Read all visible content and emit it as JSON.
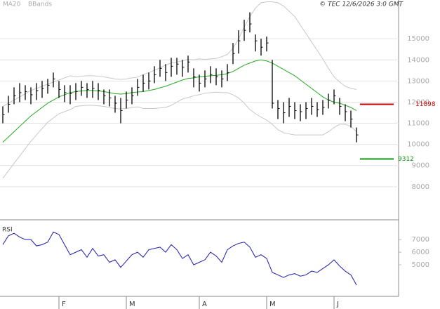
{
  "chart_data": [
    {
      "type": "ohlc",
      "credit": "© TEC 12/6/2026 3:0 GMT",
      "categories": [
        null,
        null,
        null,
        null,
        null,
        null,
        null,
        null,
        null,
        null,
        "F",
        null,
        null,
        null,
        null,
        null,
        null,
        null,
        null,
        null,
        null,
        null,
        "M",
        null,
        null,
        null,
        null,
        null,
        null,
        null,
        null,
        null,
        null,
        null,
        null,
        "A",
        null,
        null,
        null,
        null,
        null,
        null,
        null,
        null,
        null,
        null,
        null,
        "M",
        null,
        null,
        null,
        null,
        null,
        null,
        null,
        null,
        null,
        null,
        null,
        "J",
        null,
        null,
        null,
        null
      ],
      "high": [
        11800,
        12300,
        12700,
        12900,
        12800,
        12700,
        12900,
        13000,
        13100,
        13400,
        13000,
        12800,
        12800,
        12900,
        13000,
        12900,
        13000,
        12900,
        12600,
        12600,
        12300,
        12200,
        12500,
        12700,
        13100,
        13300,
        13400,
        13700,
        14000,
        13800,
        14100,
        14100,
        14000,
        14200,
        13600,
        13300,
        13500,
        13700,
        13600,
        13500,
        13800,
        14800,
        15400,
        15900,
        16250,
        15200,
        15000,
        15100,
        14000,
        12100,
        12000,
        12200,
        12000,
        11900,
        12000,
        12200,
        12000,
        12100,
        12400,
        12600,
        12200,
        11900,
        11600,
        10800
      ],
      "low": [
        11000,
        11500,
        11900,
        12000,
        12100,
        11900,
        12100,
        12200,
        12400,
        12700,
        12200,
        12000,
        11900,
        12100,
        12300,
        12200,
        12200,
        12100,
        11900,
        11800,
        11500,
        11000,
        11700,
        11900,
        12300,
        12500,
        12600,
        12900,
        13200,
        13000,
        13200,
        13300,
        13200,
        13400,
        12700,
        12500,
        12700,
        12900,
        12800,
        12700,
        13000,
        13800,
        14300,
        14900,
        15300,
        14400,
        14200,
        14400,
        11700,
        11200,
        11000,
        11300,
        11200,
        11100,
        11200,
        11400,
        11300,
        11400,
        11700,
        11900,
        11400,
        11100,
        10800,
        10100
      ],
      "close": [
        11400,
        11900,
        12300,
        12450,
        12500,
        12350,
        12550,
        12650,
        12800,
        13100,
        12600,
        12450,
        12400,
        12500,
        12700,
        12600,
        12650,
        12550,
        12300,
        12200,
        11950,
        11600,
        12100,
        12300,
        12700,
        12900,
        13000,
        13300,
        13600,
        13400,
        13700,
        13800,
        13650,
        13900,
        13200,
        12900,
        13100,
        13300,
        13200,
        13100,
        13400,
        14300,
        14900,
        15400,
        15700,
        14900,
        14600,
        14800,
        11950,
        11700,
        11500,
        11800,
        11600,
        11550,
        11700,
        11800,
        11650,
        11750,
        12100,
        12300,
        11800,
        11550,
        11200,
        10450
      ],
      "color": "#000000",
      "series": [
        {
          "name": "MA20",
          "color": "#22aa22",
          "values": [
            10100,
            10350,
            10600,
            10850,
            11100,
            11350,
            11550,
            11750,
            11950,
            12100,
            12250,
            12350,
            12450,
            12500,
            12530,
            12550,
            12550,
            12530,
            12500,
            12450,
            12400,
            12380,
            12400,
            12450,
            12480,
            12500,
            12550,
            12600,
            12680,
            12750,
            12850,
            12950,
            13050,
            13120,
            13150,
            13200,
            13220,
            13250,
            13270,
            13300,
            13350,
            13450,
            13600,
            13750,
            13850,
            13950,
            14000,
            13950,
            13850,
            13700,
            13550,
            13400,
            13250,
            13050,
            12850,
            12650,
            12450,
            12250,
            12100,
            12000,
            11950,
            11850,
            11750,
            11600
          ]
        },
        {
          "name": "BBands",
          "color": "#c8c8c8",
          "upper": [
            11800,
            11950,
            12100,
            12250,
            12400,
            12550,
            12650,
            12750,
            12850,
            12950,
            13050,
            13150,
            13250,
            13200,
            13230,
            13250,
            13250,
            13230,
            13200,
            13150,
            13100,
            13080,
            13100,
            13150,
            13180,
            13300,
            13400,
            13500,
            13630,
            13750,
            13850,
            13900,
            13950,
            14020,
            14000,
            14050,
            14020,
            14050,
            14070,
            14150,
            14250,
            14550,
            15000,
            15550,
            16050,
            16450,
            16700,
            16750,
            16750,
            16700,
            16550,
            16300,
            16050,
            15650,
            15250,
            14850,
            14450,
            14050,
            13600,
            13200,
            12950,
            12750,
            12650,
            12600
          ],
          "lower": [
            8400,
            8750,
            9100,
            9450,
            9800,
            10150,
            10450,
            10750,
            11050,
            11250,
            11450,
            11550,
            11650,
            11800,
            11830,
            11850,
            11850,
            11830,
            11800,
            11750,
            11700,
            11680,
            11700,
            11750,
            11780,
            11700,
            11700,
            11700,
            11730,
            11750,
            11850,
            12000,
            12150,
            12220,
            12300,
            12350,
            12420,
            12450,
            12470,
            12450,
            12450,
            12350,
            12200,
            11950,
            11650,
            11450,
            11300,
            11150,
            10950,
            10700,
            10550,
            10500,
            10450,
            10450,
            10450,
            10450,
            10450,
            10450,
            10600,
            10800,
            10950,
            10950,
            10850,
            10600
          ]
        }
      ],
      "levels": [
        {
          "value": 11898,
          "label": "11898",
          "color": "#cc0000"
        },
        {
          "value": 9312,
          "label": "9312",
          "color": "#119911"
        }
      ],
      "ylim": [
        6433,
        16833
      ],
      "yticks": [
        8000,
        9000,
        10000,
        11000,
        12000,
        13000,
        14000,
        15000
      ],
      "grid": true
    },
    {
      "type": "line",
      "title": "RSI",
      "color": "#1a1ab0",
      "values": [
        66,
        73,
        75,
        72,
        70,
        70,
        65,
        66,
        68,
        76,
        74,
        66,
        58,
        60,
        62,
        56,
        63,
        57,
        58,
        52,
        54,
        48,
        53,
        58,
        60,
        56,
        62,
        63,
        64,
        60,
        66,
        62,
        55,
        58,
        50,
        52,
        54,
        60,
        57,
        52,
        62,
        65,
        67,
        68,
        64,
        56,
        58,
        55,
        44,
        42,
        40,
        42,
        43,
        41,
        42,
        45,
        44,
        47,
        50,
        54,
        49,
        45,
        42,
        34
      ],
      "ylim": [
        25,
        84
      ],
      "yticks": [
        {
          "value": 50,
          "label": "5000"
        },
        {
          "value": 60,
          "label": "6000"
        },
        {
          "value": 70,
          "label": "7000"
        }
      ]
    }
  ]
}
